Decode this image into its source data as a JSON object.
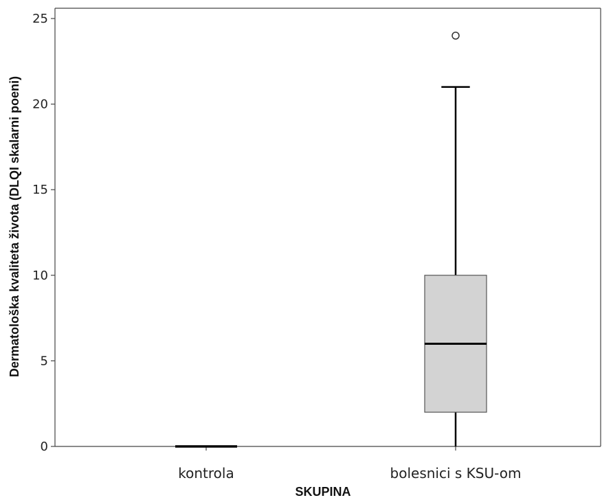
{
  "chart_data": {
    "type": "boxplot",
    "xlabel": "SKUPINA",
    "ylabel": "Dermatološka kvaliteta života (DLQI skalarni poeni)",
    "ylim": [
      0,
      25.6
    ],
    "yticks": [
      0,
      5,
      10,
      15,
      20,
      25
    ],
    "categories": [
      "kontrola",
      "bolesnici s KSU-om"
    ],
    "boxes": [
      {
        "category": "kontrola",
        "min": 0,
        "q1": 0,
        "median": 0,
        "q3": 0,
        "max": 0,
        "outliers": []
      },
      {
        "category": "bolesnici s KSU-om",
        "min": 0,
        "q1": 2,
        "median": 6,
        "q3": 10,
        "max": 21,
        "outliers": [
          24
        ]
      }
    ],
    "box_color": "#d3d3d3",
    "grid": false
  }
}
